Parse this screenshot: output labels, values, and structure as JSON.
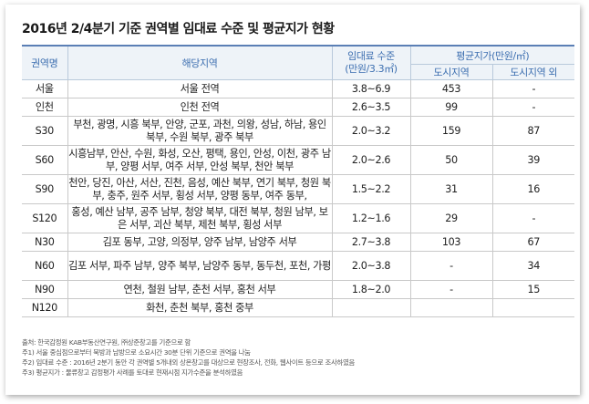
{
  "title": "2016년 2/4분기 기준 권역별 임대료 수준 및 평균지가 현황",
  "headers": {
    "region": "권역명",
    "area": "해당지역",
    "rent_line1": "임대료 수준",
    "rent_line2": "(만원/3.3㎡)",
    "land": "평균지가(만원/㎡)",
    "urban": "도시지역",
    "nonurban": "도시지역 외"
  },
  "rows": [
    {
      "region": "서울",
      "area": "서울 전역",
      "rent": "3.8~6.9",
      "urban": "453",
      "nonurban": "-"
    },
    {
      "region": "인천",
      "area": "인천 전역",
      "rent": "2.6~3.5",
      "urban": "99",
      "nonurban": "-"
    },
    {
      "region": "S30",
      "area": "부천, 광명, 시흥 북부, 안양, 군포, 과천, 의왕, 성남, 하남, 용인 북부, 수원 북부, 광주 북부",
      "rent": "2.0~3.2",
      "urban": "159",
      "nonurban": "87"
    },
    {
      "region": "S60",
      "area": "시흥남부, 안산, 수원, 화성, 오산, 평택, 용인, 안성, 이천, 광주 남부, 양평 서부, 여주 서부, 안성 북부, 천안 북부",
      "rent": "2.0~2.6",
      "urban": "50",
      "nonurban": "39"
    },
    {
      "region": "S90",
      "area": "천안, 당진, 아산, 서산, 진천, 음성, 예산 북부, 연기 북부, 청원 북부, 충주, 원주 서부, 횡성 서부, 양평 동부, 여주 동부,",
      "rent": "1.5~2.2",
      "urban": "31",
      "nonurban": "16"
    },
    {
      "region": "S120",
      "area": "홍성, 예산 남부, 공주 남부, 청양 북부, 대전 북부, 청원 남부, 보은 서부, 괴산 북부, 제천 북부, 횡성 서부",
      "rent": "1.2~1.6",
      "urban": "29",
      "nonurban": "-"
    },
    {
      "region": "N30",
      "area": "김포 동부, 고양, 의정부, 양주 남부, 남양주 서부",
      "rent": "2.7~3.8",
      "urban": "103",
      "nonurban": "67"
    },
    {
      "region": "N60",
      "area": "김포 서부, 파주 남부, 양주 북부, 남양주 동부, 동두천, 포천, 가평",
      "rent": "2.0~3.8",
      "urban": "-",
      "nonurban": "34"
    },
    {
      "region": "N90",
      "area": "연천, 철원 남부, 춘천 서부, 홍천 서부",
      "rent": "1.8~2.0",
      "urban": "-",
      "nonurban": "15"
    },
    {
      "region": "N120",
      "area": "화천, 춘천 북부, 홍천 중부",
      "rent": "",
      "urban": "",
      "nonurban": ""
    }
  ],
  "notes": [
    "출처: 한국감정원 KAB부동산연구원, ㈜상준창고를 기준으로 함",
    "주1) 서울 중심점으로부터 북방과 남방으로 소요시간 30분 단위 기준으로 권역을 나눔",
    "주2) 임대료 수준 : 2016년 2분기 동안 각 권역별 5개내외 상온창고를 대상으로 현장조사, 전화, 웹사이트 등으로 조사하였음",
    "주3) 평균지가 : 물류창고 감정평가 사례를 토대로 현재시점 지가수준을 분석하였음"
  ]
}
